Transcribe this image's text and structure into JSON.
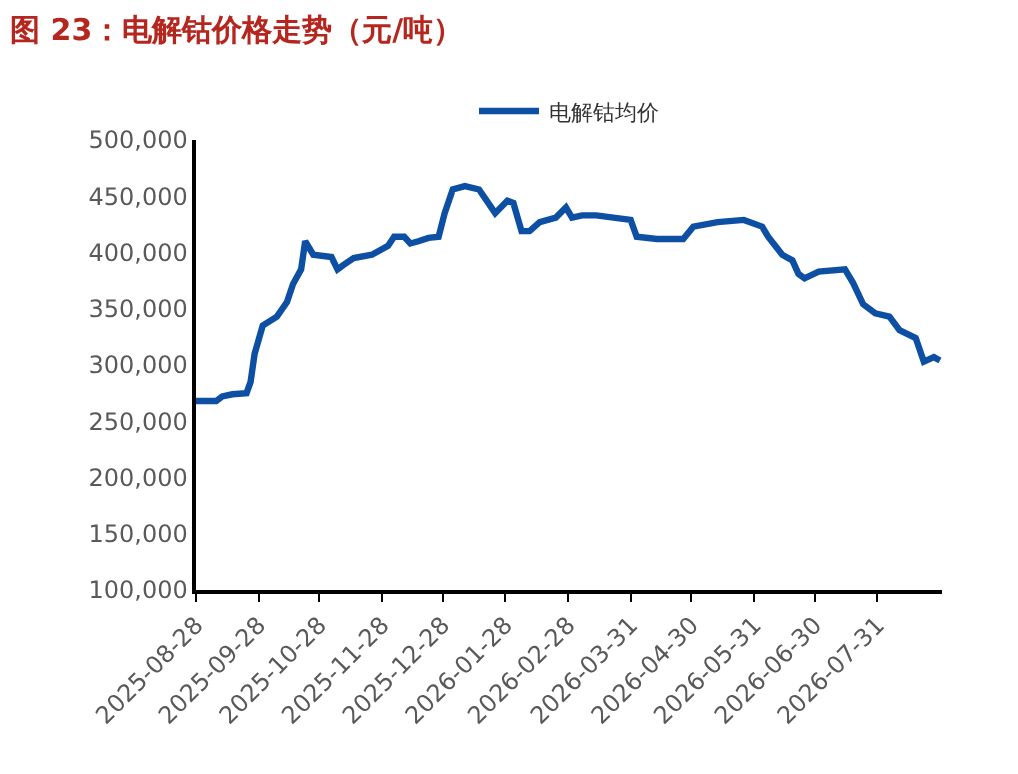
{
  "chart_data": {
    "type": "line",
    "title": "图 23：电解钴价格走势（元/吨）",
    "legend": "top",
    "marker": "none",
    "line_style": "solid",
    "x": [
      "2025-08-28",
      "2025-09-07",
      "2025-09-10",
      "2025-09-15",
      "2025-09-22",
      "2025-09-24",
      "2025-09-26",
      "2025-09-30",
      "2025-10-07",
      "2025-10-12",
      "2025-10-15",
      "2025-10-19",
      "2025-10-21",
      "2025-10-25",
      "2025-11-03",
      "2025-11-06",
      "2025-11-09",
      "2025-11-14",
      "2025-11-23",
      "2025-12-01",
      "2025-12-04",
      "2025-12-09",
      "2025-12-12",
      "2025-12-16",
      "2025-12-21",
      "2025-12-26",
      "2025-12-29",
      "2026-01-02",
      "2026-01-08",
      "2026-01-15",
      "2026-01-23",
      "2026-01-29",
      "2026-02-01",
      "2026-02-05",
      "2026-02-09",
      "2026-02-14",
      "2026-02-22",
      "2026-02-27",
      "2026-03-02",
      "2026-03-07",
      "2026-03-14",
      "2026-03-31",
      "2026-04-03",
      "2026-04-13",
      "2026-04-26",
      "2026-05-01",
      "2026-05-13",
      "2026-05-26",
      "2026-06-04",
      "2026-06-07",
      "2026-06-14",
      "2026-06-19",
      "2026-06-22",
      "2026-06-25",
      "2026-07-02",
      "2026-07-15",
      "2026-07-19",
      "2026-07-24",
      "2026-07-30",
      "2026-08-06",
      "2026-08-11",
      "2026-08-19",
      "2026-08-23",
      "2026-08-28",
      "2026-08-31"
    ],
    "series": [
      {
        "name": "电解钴均价",
        "color": "#0d4fa3",
        "values": [
          268000,
          268000,
          272000,
          274000,
          275000,
          285000,
          310000,
          335000,
          343000,
          356000,
          372000,
          385000,
          410000,
          398000,
          396000,
          385000,
          389000,
          395000,
          398000,
          406000,
          414000,
          414000,
          408000,
          410000,
          413000,
          414000,
          435000,
          456000,
          459000,
          456000,
          435000,
          446000,
          444000,
          419000,
          419000,
          427000,
          431000,
          440000,
          431000,
          433000,
          433000,
          429000,
          414000,
          412000,
          412000,
          423000,
          427000,
          429000,
          423000,
          414000,
          398000,
          393000,
          381000,
          377000,
          383000,
          385000,
          373000,
          354000,
          346000,
          343000,
          331000,
          324000,
          303000,
          307000,
          304000
        ]
      }
    ],
    "xlim": [
      "2025-08-28",
      "2026-09-01"
    ],
    "xticks": [
      "2025-08-28",
      "2025-09-28",
      "2025-10-28",
      "2025-11-28",
      "2025-12-28",
      "2026-01-28",
      "2026-02-28",
      "2026-03-31",
      "2026-04-30",
      "2026-05-31",
      "2026-06-30",
      "2026-07-31"
    ],
    "ylim": [
      100000,
      500000
    ],
    "yticks": [
      {
        "value": 100000,
        "label": "100,000"
      },
      {
        "value": 150000,
        "label": "150,000"
      },
      {
        "value": 200000,
        "label": "200,000"
      },
      {
        "value": 250000,
        "label": "250,000"
      },
      {
        "value": 300000,
        "label": "300,000"
      },
      {
        "value": 350000,
        "label": "350,000"
      },
      {
        "value": 400000,
        "label": "400,000"
      },
      {
        "value": 450000,
        "label": "450,000"
      },
      {
        "value": 500000,
        "label": "500,000"
      }
    ]
  }
}
